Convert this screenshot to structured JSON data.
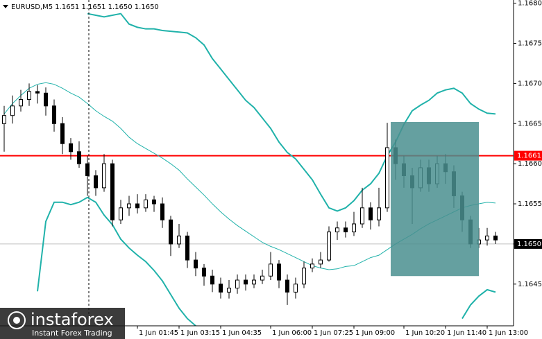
{
  "chart_data": {
    "type": "candlestick",
    "title": "EURUSD,M5  1.1651 1.1651 1.1650 1.1650",
    "categories": [
      null,
      null,
      null,
      null,
      null,
      null,
      null,
      null,
      null,
      null,
      null,
      null,
      null,
      null,
      null,
      null,
      "1 Jun 01:45",
      null,
      null,
      null,
      null,
      "1 Jun 03:15",
      null,
      null,
      null,
      null,
      "1 Jun 04:35",
      null,
      null,
      null,
      null,
      null,
      "1 Jun 06:00",
      null,
      null,
      null,
      null,
      "1 Jun 07:25",
      null,
      null,
      null,
      null,
      "1 Jun 09:00",
      null,
      null,
      null,
      null,
      null,
      "1 Jun 10:20",
      null,
      null,
      null,
      null,
      "1 Jun 11:40",
      null,
      null,
      null,
      null,
      "1 Jun 13:00",
      null
    ],
    "open": [
      1.1665,
      1.1666,
      1.16672,
      1.1668,
      1.1669,
      1.16688,
      1.16672,
      1.1665,
      1.16625,
      1.16615,
      1.166,
      1.16585,
      1.1657,
      1.166,
      1.1653,
      1.16545,
      1.1655,
      1.16545,
      1.16555,
      1.1655,
      1.1653,
      1.165,
      1.1651,
      1.1648,
      1.1647,
      1.1646,
      1.1645,
      1.1644,
      1.16445,
      1.16455,
      1.1645,
      1.16455,
      1.1646,
      1.16475,
      1.16455,
      1.1644,
      1.1645,
      1.1647,
      1.16475,
      1.1648,
      1.16515,
      1.1652,
      1.16515,
      1.16525,
      1.16545,
      1.1653,
      1.16545,
      1.1662,
      1.166,
      1.16585,
      1.1657,
      1.16595,
      1.16575,
      1.166,
      1.1659,
      1.1656,
      1.1653,
      1.165,
      1.16505,
      1.1651
    ],
    "high": [
      1.16672,
      1.16685,
      1.16692,
      1.167,
      1.16698,
      1.16695,
      1.1668,
      1.16658,
      1.16632,
      1.16628,
      1.1661,
      1.16592,
      1.16612,
      1.16605,
      1.16555,
      1.1656,
      1.16562,
      1.16562,
      1.1656,
      1.16558,
      1.16535,
      1.16525,
      1.16515,
      1.1649,
      1.16475,
      1.16468,
      1.16458,
      1.16455,
      1.16462,
      1.16462,
      1.16462,
      1.16468,
      1.1649,
      1.1648,
      1.16462,
      1.16458,
      1.16478,
      1.16482,
      1.1649,
      1.16522,
      1.16528,
      1.16528,
      1.1654,
      1.1657,
      1.16552,
      1.1657,
      1.16651,
      1.1663,
      1.1661,
      1.16595,
      1.16605,
      1.16605,
      1.1661,
      1.16612,
      1.16598,
      1.16565,
      1.16535,
      1.1652,
      1.1652,
      1.16515
    ],
    "low": [
      1.16615,
      1.1665,
      1.16665,
      1.16672,
      1.16675,
      1.1666,
      1.1664,
      1.16612,
      1.16605,
      1.16595,
      1.1656,
      1.1656,
      1.16565,
      1.16522,
      1.16525,
      1.16535,
      1.16538,
      1.1654,
      1.1654,
      1.1652,
      1.16485,
      1.16495,
      1.1647,
      1.1646,
      1.16448,
      1.1644,
      1.16432,
      1.16432,
      1.16438,
      1.16442,
      1.16445,
      1.1645,
      1.16455,
      1.16445,
      1.16424,
      1.16432,
      1.16445,
      1.16465,
      1.1647,
      1.16478,
      1.16505,
      1.16508,
      1.1651,
      1.1652,
      1.16518,
      1.16522,
      1.1654,
      1.1658,
      1.1657,
      1.16525,
      1.16565,
      1.16565,
      1.1657,
      1.16575,
      1.16545,
      1.16515,
      1.16495,
      1.16495,
      1.16498,
      1.165
    ],
    "close": [
      1.1666,
      1.16672,
      1.1668,
      1.1669,
      1.16688,
      1.16672,
      1.1665,
      1.16625,
      1.16615,
      1.166,
      1.16585,
      1.1657,
      1.166,
      1.1653,
      1.16545,
      1.1655,
      1.16545,
      1.16555,
      1.1655,
      1.1653,
      1.165,
      1.1651,
      1.1648,
      1.1647,
      1.1646,
      1.1645,
      1.1644,
      1.16445,
      1.16455,
      1.1645,
      1.16455,
      1.1646,
      1.16475,
      1.16455,
      1.1644,
      1.1645,
      1.1647,
      1.16475,
      1.1648,
      1.16515,
      1.1652,
      1.16515,
      1.16525,
      1.16545,
      1.1653,
      1.16545,
      1.1662,
      1.166,
      1.16585,
      1.1657,
      1.16595,
      1.16575,
      1.166,
      1.1659,
      1.1656,
      1.1653,
      1.165,
      1.16505,
      1.1651,
      1.16505
    ],
    "color": "#000000",
    "series": [
      {
        "color": "#20b2aa",
        "width": 2,
        "values": [
          null,
          null,
          null,
          null,
          null,
          null,
          null,
          null,
          null,
          null,
          1.16787,
          1.16785,
          1.16783,
          1.16785,
          1.16787,
          1.16774,
          1.1677,
          1.16768,
          1.16768,
          1.16766,
          1.16765,
          1.16764,
          1.16763,
          1.16757,
          1.16748,
          1.16731,
          1.16718,
          1.16705,
          1.16692,
          1.16679,
          1.1667,
          1.16657,
          1.16644,
          1.16627,
          1.16614,
          1.16606,
          1.16593,
          1.1658,
          1.16562,
          1.16545,
          1.16541,
          1.16545,
          1.16554,
          1.16567,
          1.16575,
          1.16588,
          1.1661,
          1.16627,
          1.16649,
          1.16666,
          1.16673,
          1.16679,
          1.16688,
          1.16692,
          1.16694,
          1.16688,
          1.16675,
          1.16668,
          1.16663,
          1.16662
        ]
      },
      {
        "color": "#20b2aa",
        "width": 1,
        "values": [
          1.16662,
          1.16675,
          1.16685,
          1.16694,
          1.16699,
          1.16701,
          1.16699,
          1.16694,
          1.16688,
          1.16683,
          1.16675,
          1.16666,
          1.16659,
          1.16653,
          1.16644,
          1.16633,
          1.16625,
          1.16619,
          1.16613,
          1.16607,
          1.166,
          1.16592,
          1.16581,
          1.16571,
          1.16561,
          1.1655,
          1.1654,
          1.16531,
          1.16523,
          1.16516,
          1.16509,
          1.16502,
          1.16497,
          1.16493,
          1.16488,
          1.16483,
          1.16478,
          1.16473,
          1.1647,
          1.16468,
          1.16469,
          1.16472,
          1.16473,
          1.16478,
          1.16483,
          1.16486,
          1.16493,
          1.165,
          1.16506,
          1.16512,
          1.16519,
          1.16525,
          1.1653,
          1.16535,
          1.1654,
          1.16545,
          1.16548,
          1.1655,
          1.16552,
          1.16551
        ]
      },
      {
        "color": "#20b2aa",
        "width": 2,
        "values": [
          null,
          null,
          null,
          null,
          1.16441,
          1.16528,
          1.16552,
          1.16552,
          1.16549,
          1.16552,
          1.16558,
          1.16552,
          1.16536,
          1.16524,
          1.16506,
          1.16495,
          1.16486,
          1.16478,
          1.16467,
          1.16454,
          1.16437,
          1.1642,
          1.16407,
          1.16398,
          null,
          null,
          null,
          null,
          null,
          null,
          null,
          null,
          null,
          null,
          null,
          null,
          null,
          null,
          null,
          null,
          null,
          null,
          null,
          null,
          null,
          null,
          null,
          null,
          null,
          null,
          null,
          null,
          null,
          null,
          null,
          1.16407,
          1.16424,
          1.16435,
          1.16443,
          1.1644
        ]
      }
    ],
    "zone": {
      "high": 1.16652,
      "low": 1.1646,
      "color": "#4a8f8f"
    },
    "price_lines": [
      {
        "value": 1.1661,
        "label": "1.1661",
        "color": "#ff0000"
      },
      {
        "value": 1.165,
        "label": "1.1650",
        "color": "#c0c0c0"
      }
    ],
    "ylim": [
      1.16398,
      1.16804
    ],
    "yticks": [
      {
        "value": 1.1645,
        "label": "1.1645"
      },
      {
        "value": 1.165,
        "label": "1.1650"
      },
      {
        "value": 1.1655,
        "label": "1.1655"
      },
      {
        "value": 1.166,
        "label": "1.1660"
      },
      {
        "value": 1.1665,
        "label": "1.1665"
      },
      {
        "value": 1.167,
        "label": "1.1670"
      },
      {
        "value": 1.1675,
        "label": "1.1675"
      },
      {
        "value": 1.168,
        "label": "1.1680"
      }
    ],
    "watermark": {
      "brand": "instaforex",
      "tagline": "Instant Forex Trading"
    }
  }
}
